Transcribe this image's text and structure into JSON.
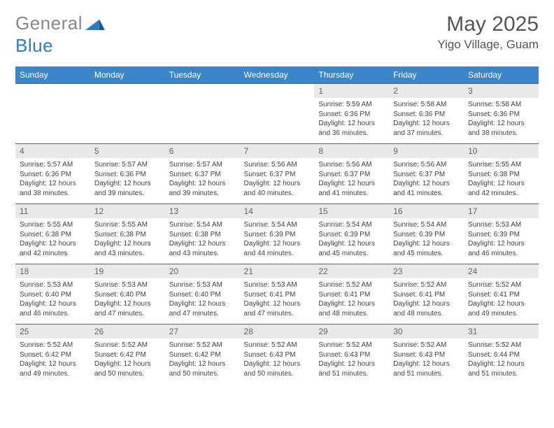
{
  "brand": {
    "part1": "General",
    "part2": "Blue"
  },
  "title": "May 2025",
  "location": "Yigo Village, Guam",
  "colors": {
    "header_bg": "#3a86c8",
    "header_text": "#ffffff",
    "cell_border": "#2f6fa6",
    "daynum_bg": "#e9e9e9",
    "daynum_text": "#666666",
    "body_text": "#444444",
    "page_bg": "#ffffff"
  },
  "weekdays": [
    "Sunday",
    "Monday",
    "Tuesday",
    "Wednesday",
    "Thursday",
    "Friday",
    "Saturday"
  ],
  "weeks": [
    [
      {
        "n": "",
        "sr": "",
        "ss": "",
        "dl": "",
        "empty": true
      },
      {
        "n": "",
        "sr": "",
        "ss": "",
        "dl": "",
        "empty": true
      },
      {
        "n": "",
        "sr": "",
        "ss": "",
        "dl": "",
        "empty": true
      },
      {
        "n": "",
        "sr": "",
        "ss": "",
        "dl": "",
        "empty": true
      },
      {
        "n": "1",
        "sr": "Sunrise: 5:59 AM",
        "ss": "Sunset: 6:36 PM",
        "dl": "Daylight: 12 hours and 36 minutes."
      },
      {
        "n": "2",
        "sr": "Sunrise: 5:58 AM",
        "ss": "Sunset: 6:36 PM",
        "dl": "Daylight: 12 hours and 37 minutes."
      },
      {
        "n": "3",
        "sr": "Sunrise: 5:58 AM",
        "ss": "Sunset: 6:36 PM",
        "dl": "Daylight: 12 hours and 38 minutes."
      }
    ],
    [
      {
        "n": "4",
        "sr": "Sunrise: 5:57 AM",
        "ss": "Sunset: 6:36 PM",
        "dl": "Daylight: 12 hours and 38 minutes."
      },
      {
        "n": "5",
        "sr": "Sunrise: 5:57 AM",
        "ss": "Sunset: 6:36 PM",
        "dl": "Daylight: 12 hours and 39 minutes."
      },
      {
        "n": "6",
        "sr": "Sunrise: 5:57 AM",
        "ss": "Sunset: 6:37 PM",
        "dl": "Daylight: 12 hours and 39 minutes."
      },
      {
        "n": "7",
        "sr": "Sunrise: 5:56 AM",
        "ss": "Sunset: 6:37 PM",
        "dl": "Daylight: 12 hours and 40 minutes."
      },
      {
        "n": "8",
        "sr": "Sunrise: 5:56 AM",
        "ss": "Sunset: 6:37 PM",
        "dl": "Daylight: 12 hours and 41 minutes."
      },
      {
        "n": "9",
        "sr": "Sunrise: 5:56 AM",
        "ss": "Sunset: 6:37 PM",
        "dl": "Daylight: 12 hours and 41 minutes."
      },
      {
        "n": "10",
        "sr": "Sunrise: 5:55 AM",
        "ss": "Sunset: 6:38 PM",
        "dl": "Daylight: 12 hours and 42 minutes."
      }
    ],
    [
      {
        "n": "11",
        "sr": "Sunrise: 5:55 AM",
        "ss": "Sunset: 6:38 PM",
        "dl": "Daylight: 12 hours and 42 minutes."
      },
      {
        "n": "12",
        "sr": "Sunrise: 5:55 AM",
        "ss": "Sunset: 6:38 PM",
        "dl": "Daylight: 12 hours and 43 minutes."
      },
      {
        "n": "13",
        "sr": "Sunrise: 5:54 AM",
        "ss": "Sunset: 6:38 PM",
        "dl": "Daylight: 12 hours and 43 minutes."
      },
      {
        "n": "14",
        "sr": "Sunrise: 5:54 AM",
        "ss": "Sunset: 6:39 PM",
        "dl": "Daylight: 12 hours and 44 minutes."
      },
      {
        "n": "15",
        "sr": "Sunrise: 5:54 AM",
        "ss": "Sunset: 6:39 PM",
        "dl": "Daylight: 12 hours and 45 minutes."
      },
      {
        "n": "16",
        "sr": "Sunrise: 5:54 AM",
        "ss": "Sunset: 6:39 PM",
        "dl": "Daylight: 12 hours and 45 minutes."
      },
      {
        "n": "17",
        "sr": "Sunrise: 5:53 AM",
        "ss": "Sunset: 6:39 PM",
        "dl": "Daylight: 12 hours and 46 minutes."
      }
    ],
    [
      {
        "n": "18",
        "sr": "Sunrise: 5:53 AM",
        "ss": "Sunset: 6:40 PM",
        "dl": "Daylight: 12 hours and 46 minutes."
      },
      {
        "n": "19",
        "sr": "Sunrise: 5:53 AM",
        "ss": "Sunset: 6:40 PM",
        "dl": "Daylight: 12 hours and 47 minutes."
      },
      {
        "n": "20",
        "sr": "Sunrise: 5:53 AM",
        "ss": "Sunset: 6:40 PM",
        "dl": "Daylight: 12 hours and 47 minutes."
      },
      {
        "n": "21",
        "sr": "Sunrise: 5:53 AM",
        "ss": "Sunset: 6:41 PM",
        "dl": "Daylight: 12 hours and 47 minutes."
      },
      {
        "n": "22",
        "sr": "Sunrise: 5:52 AM",
        "ss": "Sunset: 6:41 PM",
        "dl": "Daylight: 12 hours and 48 minutes."
      },
      {
        "n": "23",
        "sr": "Sunrise: 5:52 AM",
        "ss": "Sunset: 6:41 PM",
        "dl": "Daylight: 12 hours and 48 minutes."
      },
      {
        "n": "24",
        "sr": "Sunrise: 5:52 AM",
        "ss": "Sunset: 6:41 PM",
        "dl": "Daylight: 12 hours and 49 minutes."
      }
    ],
    [
      {
        "n": "25",
        "sr": "Sunrise: 5:52 AM",
        "ss": "Sunset: 6:42 PM",
        "dl": "Daylight: 12 hours and 49 minutes."
      },
      {
        "n": "26",
        "sr": "Sunrise: 5:52 AM",
        "ss": "Sunset: 6:42 PM",
        "dl": "Daylight: 12 hours and 50 minutes."
      },
      {
        "n": "27",
        "sr": "Sunrise: 5:52 AM",
        "ss": "Sunset: 6:42 PM",
        "dl": "Daylight: 12 hours and 50 minutes."
      },
      {
        "n": "28",
        "sr": "Sunrise: 5:52 AM",
        "ss": "Sunset: 6:43 PM",
        "dl": "Daylight: 12 hours and 50 minutes."
      },
      {
        "n": "29",
        "sr": "Sunrise: 5:52 AM",
        "ss": "Sunset: 6:43 PM",
        "dl": "Daylight: 12 hours and 51 minutes."
      },
      {
        "n": "30",
        "sr": "Sunrise: 5:52 AM",
        "ss": "Sunset: 6:43 PM",
        "dl": "Daylight: 12 hours and 51 minutes."
      },
      {
        "n": "31",
        "sr": "Sunrise: 5:52 AM",
        "ss": "Sunset: 6:44 PM",
        "dl": "Daylight: 12 hours and 51 minutes."
      }
    ]
  ]
}
